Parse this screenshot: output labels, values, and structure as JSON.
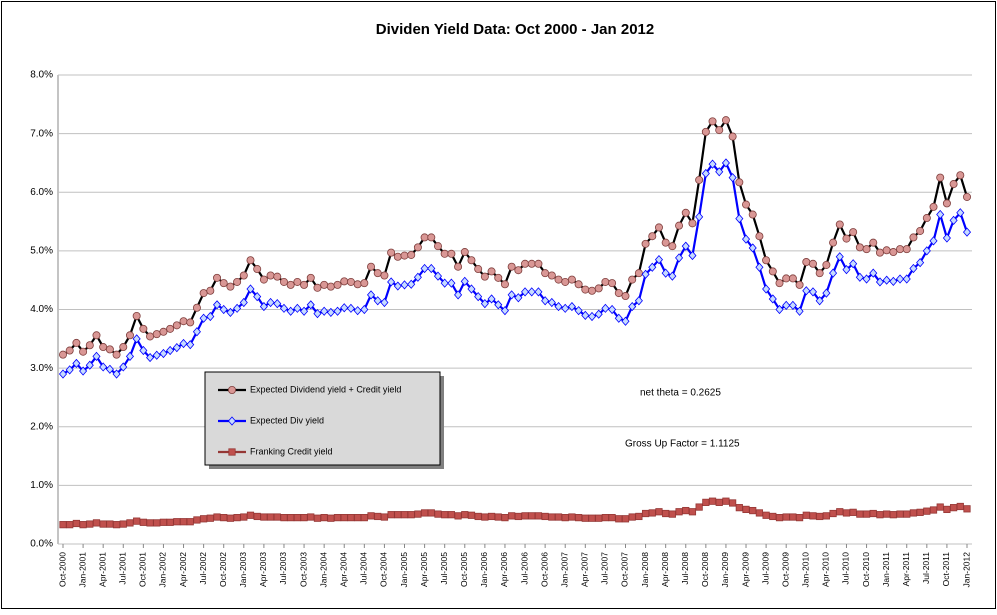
{
  "chart_data": {
    "type": "line",
    "title": "Dividen Yield Data: Oct 2000 - Jan 2012",
    "annotations": [
      "net theta = 0.2625",
      "Gross Up Factor = 1.1125"
    ],
    "categories": [
      "Oct-2000",
      null,
      null,
      "Jan-2001",
      null,
      null,
      "Apr-2001",
      null,
      null,
      "Jul-2001",
      null,
      null,
      "Oct-2001",
      null,
      null,
      "Jan-2002",
      null,
      null,
      "Apr-2002",
      null,
      null,
      "Jul-2002",
      null,
      null,
      "Oct-2002",
      null,
      null,
      "Jan-2003",
      null,
      null,
      "Apr-2003",
      null,
      null,
      "Jul-2003",
      null,
      null,
      "Oct-2003",
      null,
      null,
      "Jan-2004",
      null,
      null,
      "Apr-2004",
      null,
      null,
      "Jul-2004",
      null,
      null,
      "Oct-2004",
      null,
      null,
      "Jan-2005",
      null,
      null,
      "Apr-2005",
      null,
      null,
      "Jul-2005",
      null,
      null,
      "Oct-2005",
      null,
      null,
      "Jan-2006",
      null,
      null,
      "Apr-2006",
      null,
      null,
      "Jul-2006",
      null,
      null,
      "Oct-2006",
      null,
      null,
      "Jan-2007",
      null,
      null,
      "Apr-2007",
      null,
      null,
      "Jul-2007",
      null,
      null,
      "Oct-2007",
      null,
      null,
      "Jan-2008",
      null,
      null,
      "Apr-2008",
      null,
      null,
      "Jul-2008",
      null,
      null,
      "Oct-2008",
      null,
      null,
      "Jan-2009",
      null,
      null,
      "Apr-2009",
      null,
      null,
      "Jul-2009",
      null,
      null,
      "Oct-2009",
      null,
      null,
      "Jan-2010",
      null,
      null,
      "Apr-2010",
      null,
      null,
      "Jul-2010",
      null,
      null,
      "Oct-2010",
      null,
      null,
      "Jan-2011",
      null,
      null,
      "Apr-2011",
      null,
      null,
      "Jul-2011",
      null,
      null,
      "Oct-2011",
      null,
      null,
      "Jan-2012"
    ],
    "ylim": [
      0,
      8
    ],
    "yticks": [
      {
        "value": 0,
        "label": "0.0%"
      },
      {
        "value": 1,
        "label": "1.0%"
      },
      {
        "value": 2,
        "label": "2.0%"
      },
      {
        "value": 3,
        "label": "3.0%"
      },
      {
        "value": 4,
        "label": "4.0%"
      },
      {
        "value": 5,
        "label": "5.0%"
      },
      {
        "value": 6,
        "label": "6.0%"
      },
      {
        "value": 7,
        "label": "7.0%"
      },
      {
        "value": 8,
        "label": "8.0%"
      }
    ],
    "grid": true,
    "series": [
      {
        "name": "Expected Dividend yield + Credit yield",
        "color": "#000000",
        "marker": "circle",
        "marker_color": "#d99795",
        "values": [
          3.23,
          3.3,
          3.43,
          3.28,
          3.39,
          3.56,
          3.36,
          3.32,
          3.23,
          3.36,
          3.56,
          3.89,
          3.67,
          3.54,
          3.58,
          3.62,
          3.67,
          3.73,
          3.8,
          3.78,
          4.03,
          4.28,
          4.32,
          4.54,
          4.45,
          4.39,
          4.47,
          4.58,
          4.84,
          4.69,
          4.51,
          4.58,
          4.56,
          4.47,
          4.42,
          4.47,
          4.42,
          4.54,
          4.37,
          4.42,
          4.39,
          4.42,
          4.48,
          4.47,
          4.43,
          4.45,
          4.73,
          4.62,
          4.58,
          4.97,
          4.9,
          4.92,
          4.93,
          5.06,
          5.23,
          5.23,
          5.08,
          4.95,
          4.95,
          4.73,
          4.98,
          4.84,
          4.69,
          4.56,
          4.65,
          4.54,
          4.43,
          4.73,
          4.67,
          4.78,
          4.78,
          4.78,
          4.62,
          4.58,
          4.51,
          4.47,
          4.51,
          4.43,
          4.34,
          4.32,
          4.36,
          4.47,
          4.45,
          4.28,
          4.23,
          4.51,
          4.62,
          5.12,
          5.25,
          5.4,
          5.14,
          5.08,
          5.43,
          5.65,
          5.47,
          6.21,
          7.03,
          7.21,
          7.06,
          7.23,
          6.95,
          6.17,
          5.79,
          5.62,
          5.25,
          4.84,
          4.65,
          4.45,
          4.53,
          4.53,
          4.42,
          4.81,
          4.78,
          4.62,
          4.76,
          5.14,
          5.45,
          5.21,
          5.32,
          5.06,
          5.03,
          5.14,
          4.97,
          5.01,
          4.98,
          5.03,
          5.03,
          5.23,
          5.34,
          5.56,
          5.75,
          6.25,
          5.81,
          6.14,
          6.29,
          5.92
        ]
      },
      {
        "name": "Expected Div yield",
        "color": "#0000ff",
        "marker": "diamond",
        "marker_color": "#c6dbff",
        "values": [
          2.9,
          2.97,
          3.08,
          2.95,
          3.05,
          3.2,
          3.02,
          2.98,
          2.9,
          3.02,
          3.2,
          3.5,
          3.3,
          3.18,
          3.22,
          3.25,
          3.3,
          3.35,
          3.42,
          3.4,
          3.62,
          3.85,
          3.88,
          4.08,
          4.0,
          3.95,
          4.02,
          4.12,
          4.35,
          4.22,
          4.05,
          4.12,
          4.1,
          4.02,
          3.97,
          4.02,
          3.97,
          4.08,
          3.93,
          3.97,
          3.95,
          3.97,
          4.03,
          4.02,
          3.98,
          4.0,
          4.25,
          4.15,
          4.12,
          4.47,
          4.4,
          4.42,
          4.43,
          4.55,
          4.7,
          4.7,
          4.57,
          4.45,
          4.45,
          4.25,
          4.48,
          4.35,
          4.22,
          4.1,
          4.18,
          4.08,
          3.98,
          4.25,
          4.2,
          4.3,
          4.3,
          4.3,
          4.15,
          4.12,
          4.05,
          4.02,
          4.05,
          3.98,
          3.9,
          3.88,
          3.92,
          4.02,
          4.0,
          3.85,
          3.8,
          4.05,
          4.15,
          4.6,
          4.72,
          4.85,
          4.62,
          4.57,
          4.88,
          5.08,
          4.92,
          5.58,
          6.32,
          6.48,
          6.35,
          6.5,
          6.25,
          5.55,
          5.2,
          5.05,
          4.72,
          4.35,
          4.18,
          4.0,
          4.07,
          4.07,
          3.97,
          4.32,
          4.3,
          4.15,
          4.28,
          4.62,
          4.9,
          4.68,
          4.78,
          4.55,
          4.52,
          4.62,
          4.47,
          4.5,
          4.48,
          4.52,
          4.52,
          4.7,
          4.8,
          5.0,
          5.17,
          5.62,
          5.22,
          5.52,
          5.65,
          5.32
        ]
      },
      {
        "name": "Franking Credit yield",
        "color": "#953735",
        "marker": "square",
        "marker_color": "#c0504d",
        "values": [
          0.33,
          0.33,
          0.35,
          0.33,
          0.34,
          0.36,
          0.34,
          0.34,
          0.33,
          0.34,
          0.36,
          0.39,
          0.37,
          0.36,
          0.36,
          0.37,
          0.37,
          0.38,
          0.38,
          0.38,
          0.41,
          0.43,
          0.44,
          0.46,
          0.45,
          0.44,
          0.45,
          0.46,
          0.49,
          0.47,
          0.46,
          0.46,
          0.46,
          0.45,
          0.45,
          0.45,
          0.45,
          0.46,
          0.44,
          0.45,
          0.44,
          0.45,
          0.45,
          0.45,
          0.45,
          0.45,
          0.48,
          0.47,
          0.46,
          0.5,
          0.5,
          0.5,
          0.5,
          0.51,
          0.53,
          0.53,
          0.51,
          0.5,
          0.5,
          0.48,
          0.5,
          0.49,
          0.47,
          0.46,
          0.47,
          0.46,
          0.45,
          0.48,
          0.47,
          0.48,
          0.48,
          0.48,
          0.47,
          0.46,
          0.46,
          0.45,
          0.46,
          0.45,
          0.44,
          0.44,
          0.44,
          0.45,
          0.45,
          0.43,
          0.43,
          0.46,
          0.47,
          0.52,
          0.53,
          0.55,
          0.52,
          0.51,
          0.55,
          0.57,
          0.55,
          0.63,
          0.71,
          0.73,
          0.71,
          0.73,
          0.7,
          0.62,
          0.59,
          0.57,
          0.53,
          0.49,
          0.47,
          0.45,
          0.46,
          0.46,
          0.45,
          0.49,
          0.48,
          0.47,
          0.48,
          0.52,
          0.55,
          0.53,
          0.54,
          0.51,
          0.51,
          0.52,
          0.5,
          0.51,
          0.5,
          0.51,
          0.51,
          0.53,
          0.54,
          0.56,
          0.58,
          0.63,
          0.59,
          0.62,
          0.64,
          0.6
        ]
      }
    ]
  }
}
